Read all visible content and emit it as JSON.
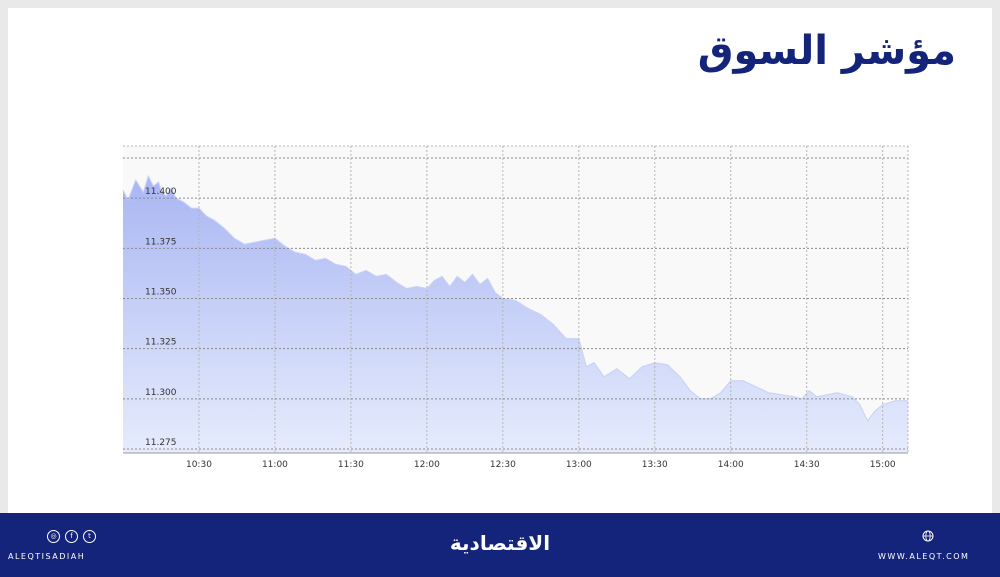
{
  "header": {
    "title": "مؤشر السوق"
  },
  "chart_data": {
    "type": "area",
    "xlabel": "",
    "ylabel": "",
    "x_ticks": [
      "10:30",
      "11:00",
      "11:30",
      "12:00",
      "12:30",
      "13:00",
      "13:30",
      "14:00",
      "14:30",
      "15:00"
    ],
    "y_ticks": [
      "11.275",
      "11.300",
      "11.325",
      "11.350",
      "11.375",
      "11.400"
    ],
    "ylim": [
      11.273,
      11.426
    ],
    "grid": true,
    "colors": {
      "fill_top": "#a9b6f3",
      "fill_bottom": "#e6ecfc",
      "line": "#c7d0f5"
    },
    "series": [
      {
        "x": [
          "10:00",
          "10:02",
          "10:05",
          "10:08",
          "10:10",
          "10:12",
          "10:14",
          "10:15",
          "10:17",
          "10:19",
          "10:21",
          "10:24",
          "10:27",
          "10:30",
          "10:33",
          "10:36",
          "10:40",
          "10:44",
          "10:48",
          "10:52",
          "10:56",
          "11:00",
          "11:04",
          "11:08",
          "11:12",
          "11:16",
          "11:20",
          "11:24",
          "11:28",
          "11:32",
          "11:36",
          "11:40",
          "11:44",
          "11:48",
          "11:52",
          "11:56",
          "12:00",
          "12:03",
          "12:06",
          "12:09",
          "12:12",
          "12:15",
          "12:18",
          "12:21",
          "12:24",
          "12:27",
          "12:30",
          "12:35",
          "12:40",
          "12:45",
          "12:50",
          "12:55",
          "13:00",
          "13:03",
          "13:06",
          "13:10",
          "13:15",
          "13:20",
          "13:25",
          "13:30",
          "13:35",
          "13:40",
          "13:44",
          "13:48",
          "13:52",
          "13:56",
          "14:00",
          "14:05",
          "14:10",
          "14:15",
          "14:20",
          "14:25",
          "14:28",
          "14:31",
          "14:34",
          "14:38",
          "14:42",
          "14:45",
          "14:48",
          "14:51",
          "14:54",
          "14:57",
          "15:00",
          "15:05",
          "15:10"
        ],
        "y": [
          11.404,
          11.399,
          11.409,
          11.403,
          11.411,
          11.406,
          11.408,
          11.404,
          11.401,
          11.405,
          11.4,
          11.398,
          11.395,
          11.395,
          11.391,
          11.389,
          11.385,
          11.38,
          11.377,
          11.378,
          11.379,
          11.38,
          11.376,
          11.373,
          11.372,
          11.369,
          11.37,
          11.367,
          11.366,
          11.362,
          11.364,
          11.361,
          11.362,
          11.358,
          11.355,
          11.356,
          11.355,
          11.359,
          11.361,
          11.356,
          11.361,
          11.358,
          11.362,
          11.357,
          11.36,
          11.353,
          11.35,
          11.349,
          11.345,
          11.342,
          11.337,
          11.33,
          11.33,
          11.316,
          11.318,
          11.311,
          11.315,
          11.31,
          11.316,
          11.318,
          11.317,
          11.311,
          11.304,
          11.3,
          11.3,
          11.303,
          11.309,
          11.309,
          11.306,
          11.303,
          11.302,
          11.301,
          11.3,
          11.304,
          11.301,
          11.302,
          11.303,
          11.302,
          11.301,
          11.297,
          11.289,
          11.294,
          11.297,
          11.299,
          11.299
        ]
      }
    ]
  },
  "footer": {
    "social_icons": [
      "instagram-icon",
      "facebook-icon",
      "twitter-icon"
    ],
    "social_glyphs": [
      "◎",
      "f",
      "t"
    ],
    "handle": "ALEQTISADIAH",
    "brand": "الاقتصادية",
    "web_icon": "globe-icon",
    "website": "WWW.ALEQT.COM"
  }
}
